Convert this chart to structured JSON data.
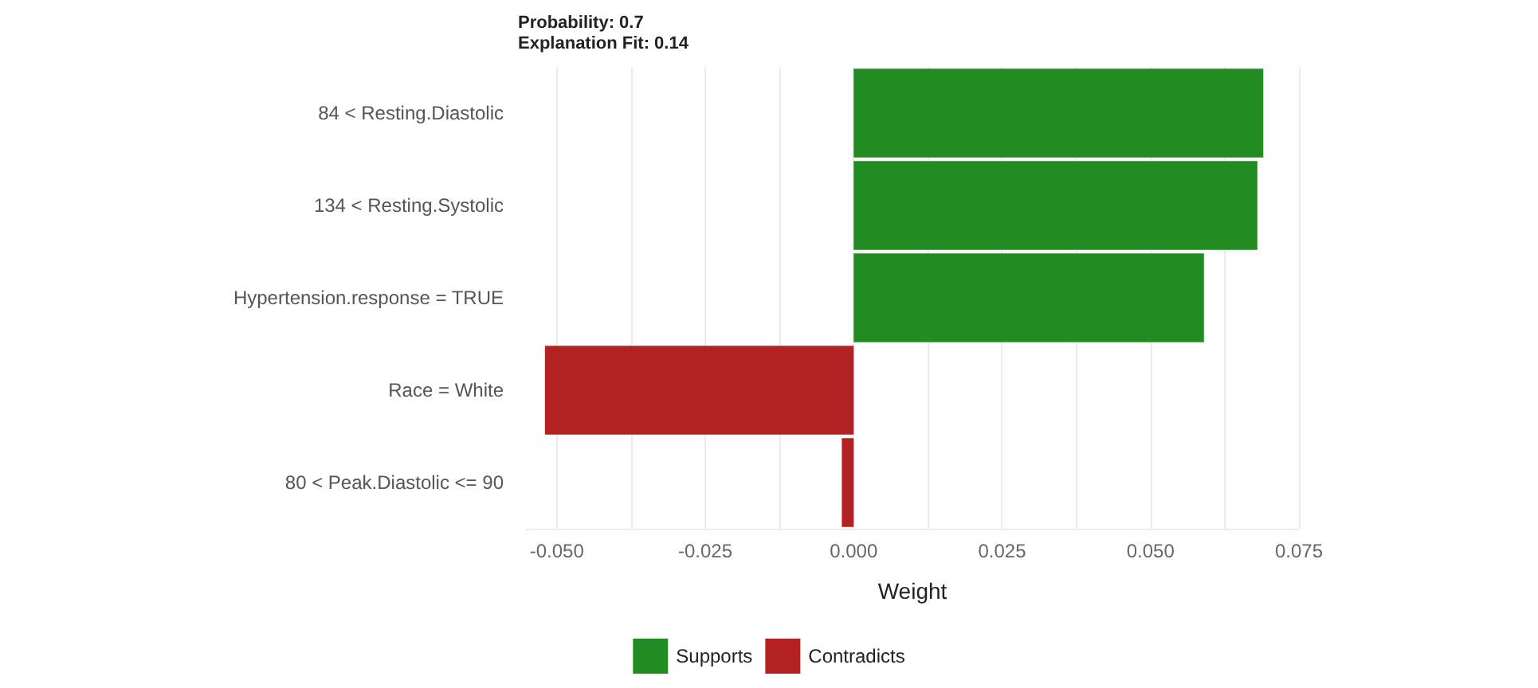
{
  "chart_data": {
    "type": "bar",
    "orientation": "horizontal",
    "stacked": true,
    "title": "Probability: 0.7",
    "subtitle": "Explanation Fit: 0.14",
    "xlabel": "Weight",
    "categories": [
      "84 < Resting.Diastolic",
      "134 < Resting.Systolic",
      "Hypertension.response = TRUE",
      "Race = White",
      "80 < Peak.Diastolic <= 90"
    ],
    "series": [
      {
        "name": "Supports",
        "color": "#228b22",
        "values": [
          0.069,
          0.068,
          0.059,
          null,
          null
        ]
      },
      {
        "name": "Contradicts",
        "color": "#b22222",
        "values": [
          null,
          null,
          null,
          -0.052,
          -0.002
        ]
      }
    ],
    "xlim": [
      -0.0552,
      0.075
    ],
    "xticks": [
      {
        "value": -0.05,
        "label": "-0.050"
      },
      {
        "value": -0.0375,
        "label": null
      },
      {
        "value": -0.025,
        "label": "-0.025"
      },
      {
        "value": -0.0125,
        "label": null
      },
      {
        "value": 0,
        "label": "0.000"
      },
      {
        "value": 0.0125,
        "label": null
      },
      {
        "value": 0.025,
        "label": "0.025"
      },
      {
        "value": 0.0375,
        "label": null
      },
      {
        "value": 0.05,
        "label": "0.050"
      },
      {
        "value": 0.0625,
        "label": null
      },
      {
        "value": 0.075,
        "label": "0.075"
      }
    ],
    "grid": "x",
    "legend": "bottom"
  }
}
